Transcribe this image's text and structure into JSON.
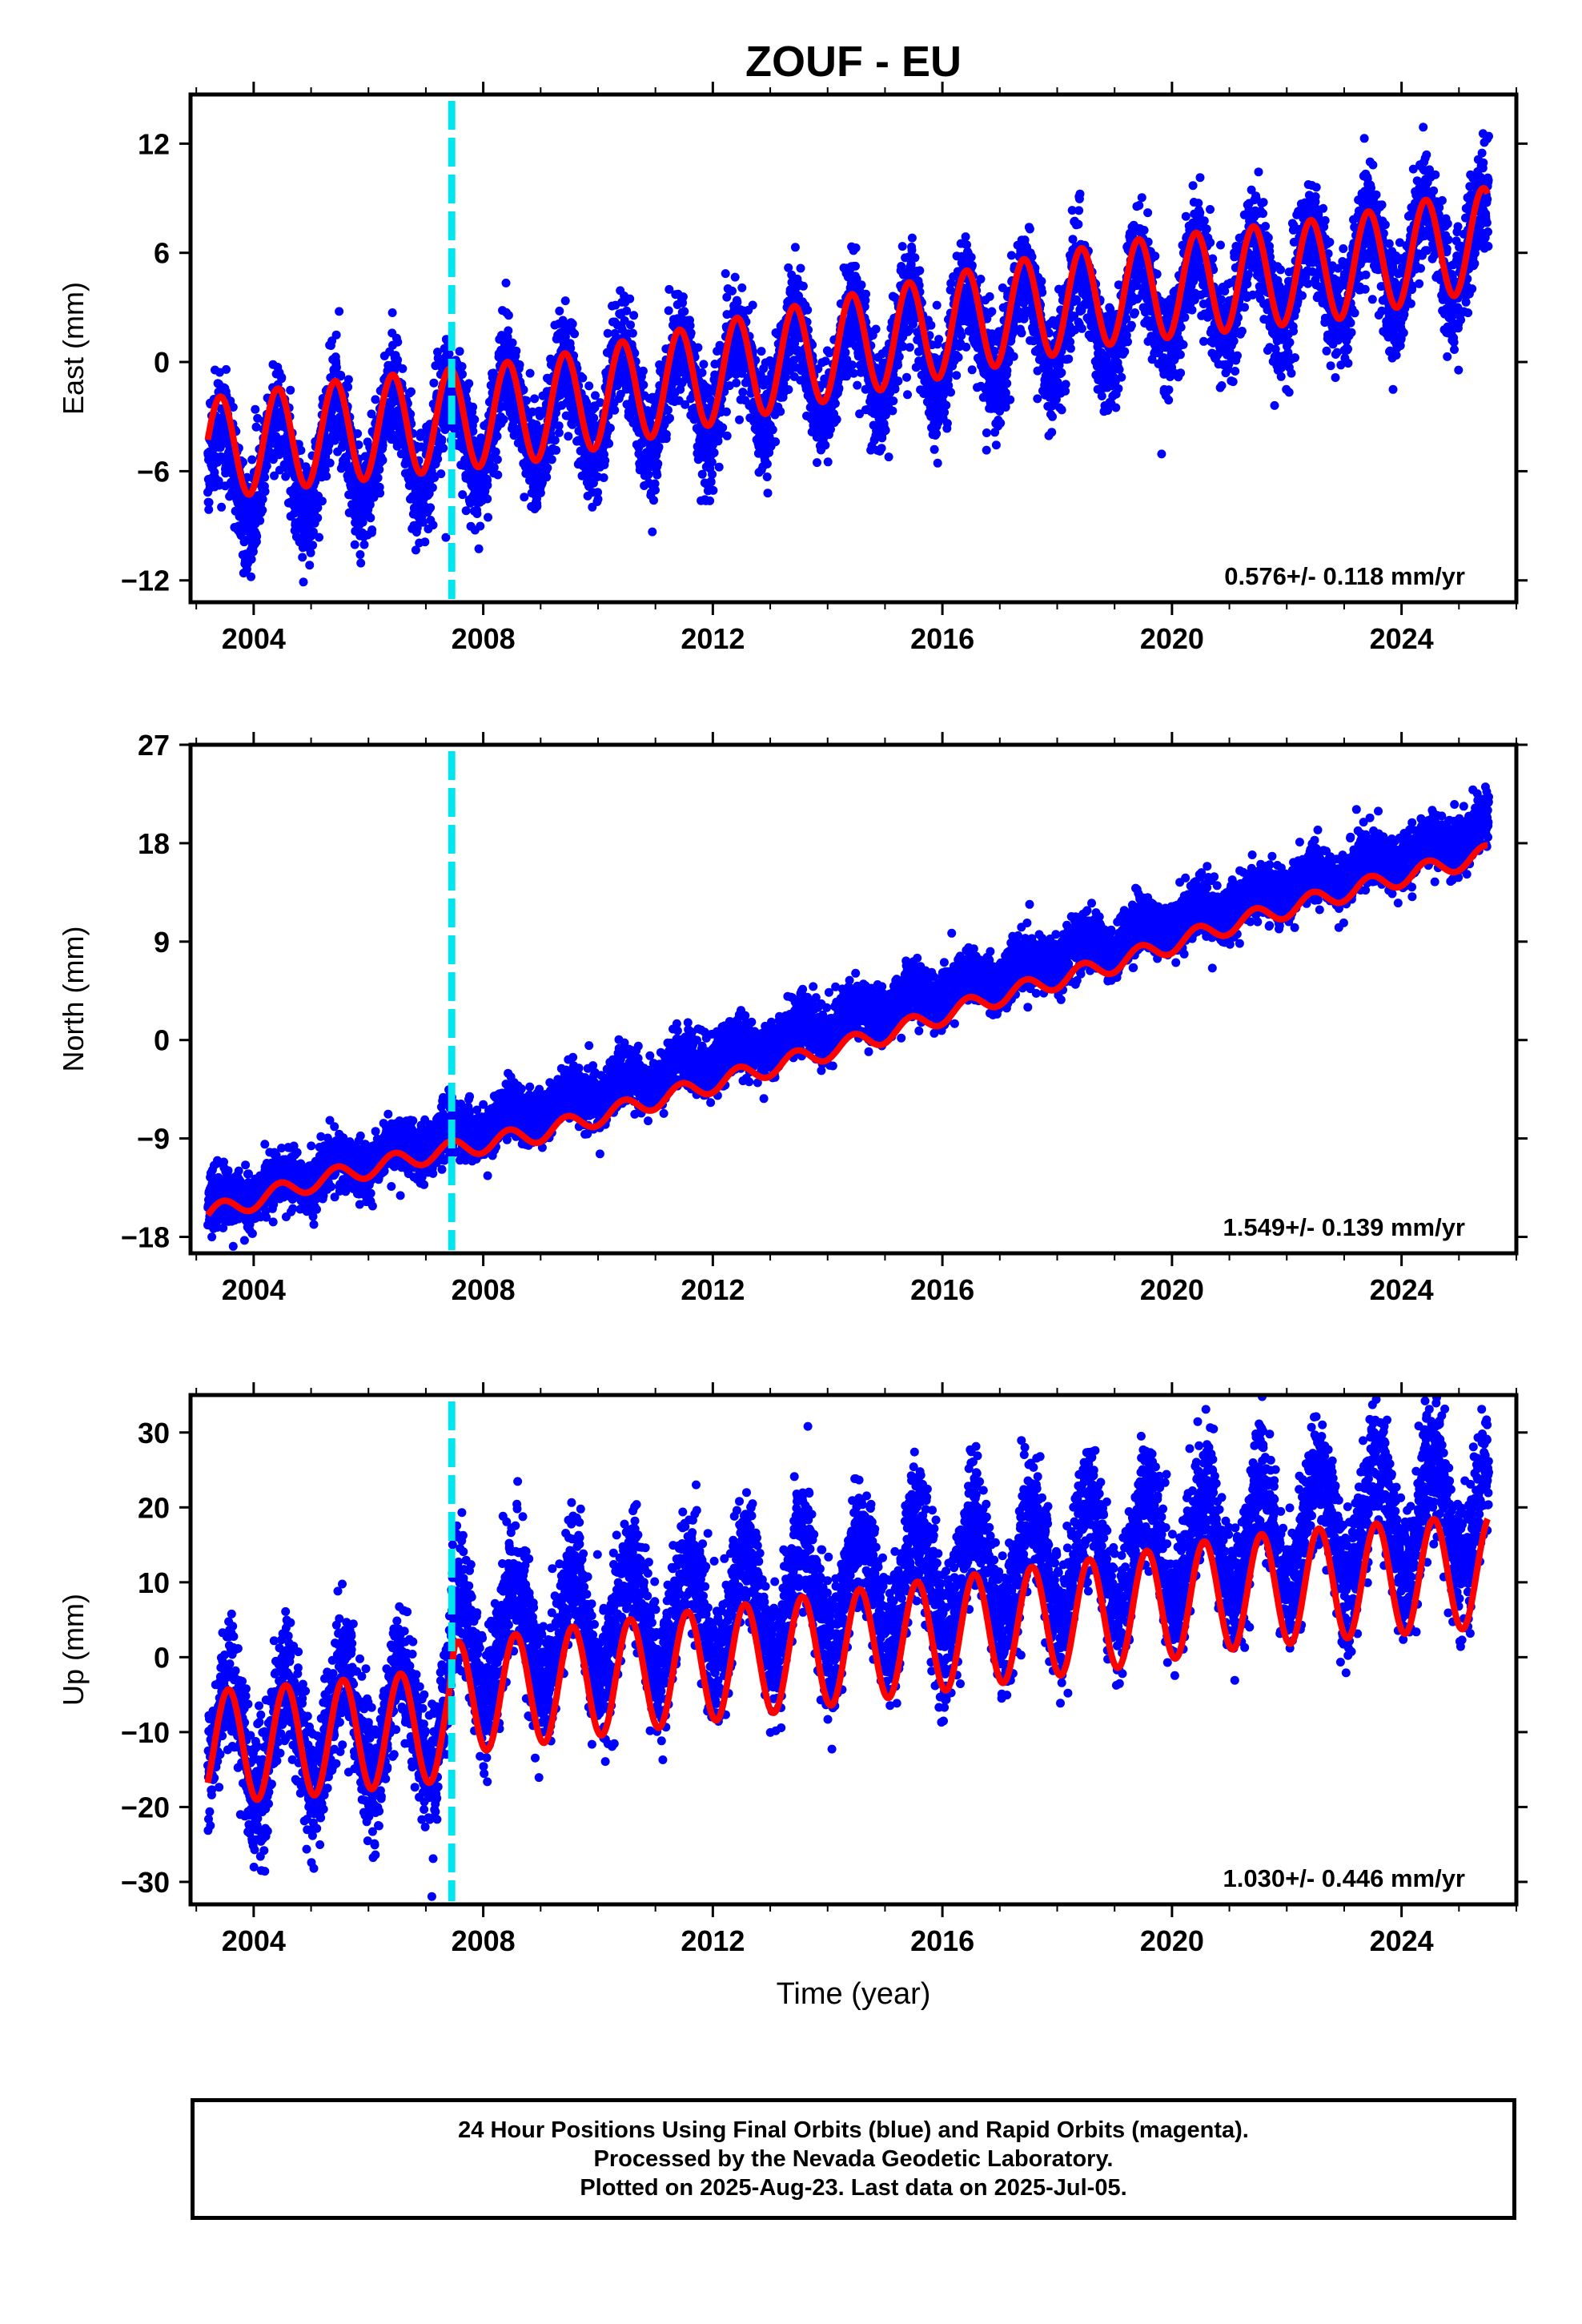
{
  "title": "ZOUF - EU",
  "colors": {
    "points": "#0000ff",
    "fit": "#ff0000",
    "offset": "#00e5ee",
    "axis": "#000000"
  },
  "chart_data": [
    {
      "type": "scatter",
      "name": "east",
      "ylabel": "East (mm)",
      "xlabel": "",
      "ylim": [
        -13.2,
        14.7
      ],
      "yticks": [
        -12,
        -6,
        0,
        6,
        12
      ],
      "ytick_labels": [
        "−12",
        "−6",
        "0",
        "6",
        "12"
      ],
      "xlim": [
        2002.9,
        2026.0
      ],
      "xticks": [
        2004,
        2008,
        2012,
        2016,
        2020,
        2024
      ],
      "xtick_labels": [
        "2004",
        "2008",
        "2012",
        "2016",
        "2020",
        "2024"
      ],
      "offset_x": 2007.45,
      "rate_label": "0.576+/- 0.118 mm/yr",
      "model": {
        "t0": 2003.2,
        "t1": 2025.52,
        "intercept": -6.3,
        "rate": 0.576,
        "amplitude": 2.8,
        "peak_phase": 0.42,
        "noise": 1.45,
        "seed": 11
      },
      "series": [
        {
          "name": "",
          "fit_type": "seasonal",
          "x": [
            2003.2,
            2005,
            2007,
            2009,
            2011,
            2013,
            2015,
            2017,
            2019,
            2021,
            2023,
            2025.5
          ],
          "y": [
            -4.8,
            -4.0,
            -3.3,
            -2.6,
            -1.3,
            0.0,
            1.3,
            2.6,
            3.8,
            4.5,
            5.2,
            6.8
          ]
        }
      ]
    },
    {
      "type": "scatter",
      "name": "north",
      "ylabel": "North (mm)",
      "xlabel": "",
      "ylim": [
        -19.5,
        27.0
      ],
      "yticks": [
        -18,
        -9,
        0,
        9,
        18,
        27
      ],
      "ytick_labels": [
        "−18",
        "−9",
        "0",
        "9",
        "18",
        "27"
      ],
      "xlim": [
        2002.9,
        2026.0
      ],
      "xticks": [
        2004,
        2008,
        2012,
        2016,
        2020,
        2024
      ],
      "xtick_labels": [
        "2004",
        "2008",
        "2012",
        "2016",
        "2020",
        "2024"
      ],
      "offset_x": 2007.45,
      "rate_label": "1.549+/- 0.139 mm/yr",
      "model": {
        "t0": 2003.2,
        "t1": 2025.52,
        "intercept": -15.3,
        "rate": 1.549,
        "amplitude": 0.85,
        "peak_phase": 0.45,
        "noise": 1.25,
        "seed": 23
      },
      "series": [
        {
          "name": "",
          "fit_type": "seasonal",
          "x": [
            2003.2,
            2005,
            2007,
            2009,
            2011,
            2013,
            2015,
            2017,
            2019,
            2021,
            2023,
            2025.5
          ],
          "y": [
            -16.0,
            -13.0,
            -10.5,
            -8.5,
            -5.5,
            -2.5,
            0.5,
            4.0,
            7.0,
            10.5,
            13.5,
            17.0
          ]
        }
      ]
    },
    {
      "type": "scatter",
      "name": "up",
      "ylabel": "Up (mm)",
      "xlabel": "Time (year)",
      "ylim": [
        -33,
        35
      ],
      "yticks": [
        -30,
        -20,
        -10,
        0,
        10,
        20,
        30
      ],
      "ytick_labels": [
        "−30",
        "−20",
        "−10",
        "0",
        "10",
        "20",
        "30"
      ],
      "xlim": [
        2002.9,
        2026.0
      ],
      "xticks": [
        2004,
        2008,
        2012,
        2016,
        2020,
        2024
      ],
      "xtick_labels": [
        "2004",
        "2008",
        "2012",
        "2016",
        "2020",
        "2024"
      ],
      "offset_x": 2007.45,
      "rate_label": "1.030+/- 0.446 mm/yr",
      "model": {
        "t0": 2003.2,
        "t1": 2025.52,
        "intercept": -12.0,
        "rate": 1.03,
        "amplitude": 7.5,
        "peak_phase": 0.56,
        "noise": 4.3,
        "jump_x": 2007.45,
        "jump": 9.0,
        "seed": 37
      },
      "series": [
        {
          "name": "",
          "fit_type": "seasonal",
          "x": [
            2003.2,
            2005,
            2007.4,
            2007.5,
            2009,
            2011,
            2013,
            2015,
            2017,
            2019,
            2021,
            2023,
            2025.5
          ],
          "y": [
            -12.0,
            -11.0,
            -9.0,
            -5.5,
            -4.0,
            -2.0,
            0.0,
            2.0,
            4.0,
            6.0,
            8.5,
            10.0,
            11.5
          ]
        }
      ]
    }
  ],
  "caption": {
    "line1": "24 Hour Positions Using Final Orbits (blue) and Rapid Orbits (magenta).",
    "line2": "Processed by the Nevada Geodetic Laboratory.",
    "line3": "Plotted on 2025-Aug-23. Last data on 2025-Jul-05."
  }
}
